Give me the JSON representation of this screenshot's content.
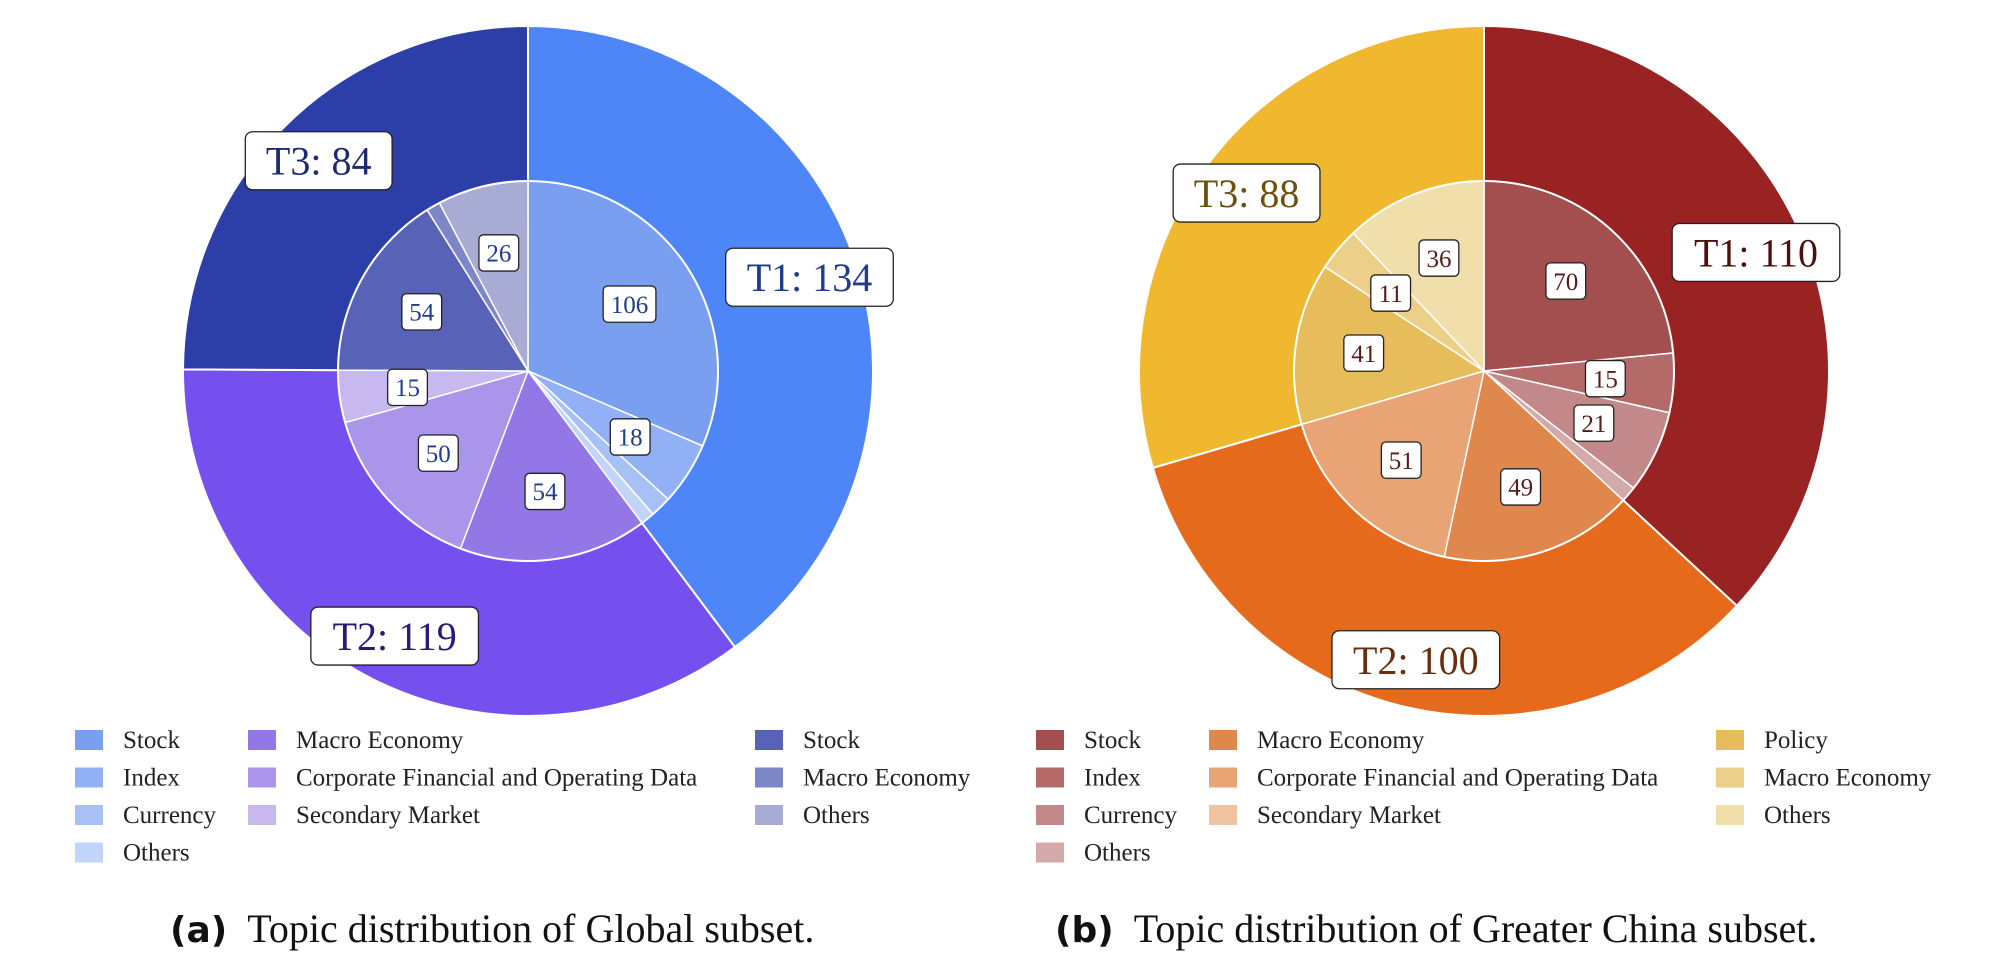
{
  "chart_data": [
    {
      "type": "pie",
      "caption_tag": "(a)",
      "caption_text": "Topic distribution of Global subset.",
      "outer": [
        {
          "label": "T1: 134",
          "value": 134,
          "color": "#4f86f7",
          "text_color": "#1f3c8f"
        },
        {
          "label": "T2: 119",
          "value": 119,
          "color": "#7550ee",
          "text_color": "#2b1a7a"
        },
        {
          "label": "T3: 84",
          "value": 84,
          "color": "#2c3ea8",
          "text_color": "#1e2a70"
        }
      ],
      "inner": [
        {
          "name": "Stock",
          "value": 106,
          "color": "#7b9ff0",
          "label": "106",
          "group": 0
        },
        {
          "name": "Index",
          "value": 18,
          "color": "#91b0f5",
          "label": "18",
          "group": 0
        },
        {
          "name": "Currency",
          "value": 6,
          "color": "#a7c1f7",
          "label": "",
          "group": 0
        },
        {
          "name": "Others",
          "value": 4,
          "color": "#c1d4f9",
          "label": "",
          "group": 0
        },
        {
          "name": "Macro Economy",
          "value": 54,
          "color": "#9377e6",
          "label": "54",
          "group": 1
        },
        {
          "name": "Corporate Financial and Operating Data",
          "value": 50,
          "color": "#a995e9",
          "label": "50",
          "group": 1
        },
        {
          "name": "Secondary Market",
          "value": 15,
          "color": "#c8b8f0",
          "label": "15",
          "group": 1
        },
        {
          "name": "Stock",
          "value": 54,
          "color": "#5862b6",
          "label": "54",
          "group": 2
        },
        {
          "name": "Macro Economy",
          "value": 4,
          "color": "#7d87c7",
          "label": "",
          "group": 2
        },
        {
          "name": "Others",
          "value": 26,
          "color": "#a8acd5",
          "label": "26",
          "group": 2
        }
      ],
      "legend_columns": [
        [
          {
            "label": "Stock",
            "color": "#7b9ff0"
          },
          {
            "label": "Index",
            "color": "#91b0f5"
          },
          {
            "label": "Currency",
            "color": "#a7c1f7"
          },
          {
            "label": "Others",
            "color": "#c1d4f9"
          }
        ],
        [
          {
            "label": "Macro Economy",
            "color": "#9377e6"
          },
          {
            "label": "Corporate Financial and Operating Data",
            "color": "#a995e9"
          },
          {
            "label": "Secondary Market",
            "color": "#c8b8f0"
          }
        ],
        [
          {
            "label": "Stock",
            "color": "#5862b6"
          },
          {
            "label": "Macro Economy",
            "color": "#7d87c7"
          },
          {
            "label": "Others",
            "color": "#a8acd5"
          }
        ]
      ],
      "inner_text_color": "#1f3c8f"
    },
    {
      "type": "pie",
      "caption_tag": "(b)",
      "caption_text": "Topic distribution of Greater China subset.",
      "outer": [
        {
          "label": "T1: 110",
          "value": 110,
          "color": "#992222",
          "text_color": "#4a1010"
        },
        {
          "label": "T2: 100",
          "value": 100,
          "color": "#e66a1b",
          "text_color": "#6b2e0a"
        },
        {
          "label": "T3: 88",
          "value": 88,
          "color": "#f0b82f",
          "text_color": "#6b5010"
        }
      ],
      "inner": [
        {
          "name": "Stock",
          "value": 70,
          "color": "#a34f50",
          "label": "70",
          "group": 0
        },
        {
          "name": "Index",
          "value": 15,
          "color": "#b56a6a",
          "label": "15",
          "group": 0
        },
        {
          "name": "Currency",
          "value": 21,
          "color": "#c3898a",
          "label": "21",
          "group": 0
        },
        {
          "name": "Others",
          "value": 4,
          "color": "#d4a9a9",
          "label": "",
          "group": 0
        },
        {
          "name": "Macro Economy",
          "value": 49,
          "color": "#e0874e",
          "label": "49",
          "group": 1
        },
        {
          "name": "Corporate Financial and Operating Data",
          "value": 51,
          "color": "#e8a475",
          "label": "51",
          "group": 1
        },
        {
          "name": "Secondary Market",
          "value": 0,
          "color": "#efc2a2",
          "label": "",
          "group": 1
        },
        {
          "name": "Policy",
          "value": 41,
          "color": "#e7bd5c",
          "label": "41",
          "group": 2
        },
        {
          "name": "Macro Economy",
          "value": 11,
          "color": "#ecd08a",
          "label": "11",
          "group": 2
        },
        {
          "name": "Others",
          "value": 36,
          "color": "#f0deab",
          "label": "36",
          "group": 2
        }
      ],
      "legend_columns": [
        [
          {
            "label": "Stock",
            "color": "#a34f50"
          },
          {
            "label": "Index",
            "color": "#b56a6a"
          },
          {
            "label": "Currency",
            "color": "#c3898a"
          },
          {
            "label": "Others",
            "color": "#d4a9a9"
          }
        ],
        [
          {
            "label": "Macro Economy",
            "color": "#e0874e"
          },
          {
            "label": "Corporate Financial and Operating Data",
            "color": "#e8a475"
          },
          {
            "label": "Secondary Market",
            "color": "#efc2a2"
          }
        ],
        [
          {
            "label": "Policy",
            "color": "#e7bd5c"
          },
          {
            "label": "Macro Economy",
            "color": "#ecd08a"
          },
          {
            "label": "Others",
            "color": "#f0deab"
          }
        ]
      ],
      "inner_text_color": "#5a1a1a"
    }
  ]
}
